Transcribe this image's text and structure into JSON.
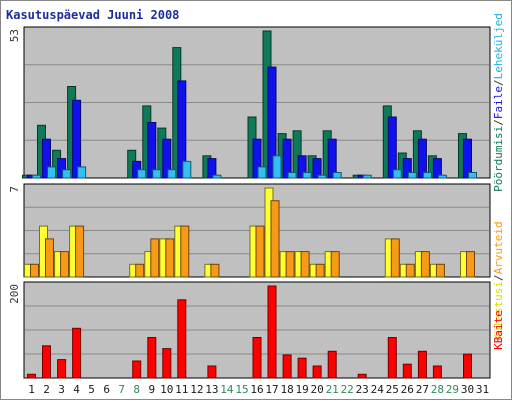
{
  "chart_data": {
    "title": "Kasutuspäevad Juuni 2008",
    "days": [
      "1",
      "2",
      "3",
      "4",
      "5",
      "6",
      "7",
      "8",
      "9",
      "10",
      "11",
      "12",
      "13",
      "14",
      "15",
      "16",
      "17",
      "18",
      "19",
      "20",
      "21",
      "22",
      "23",
      "24",
      "25",
      "26",
      "27",
      "28",
      "29",
      "30",
      "31"
    ],
    "weekend_days": [
      "7",
      "8",
      "14",
      "15",
      "21",
      "22",
      "28",
      "29"
    ],
    "panels": [
      {
        "type": "bar",
        "max_label": "53",
        "ylim": [
          0,
          53
        ],
        "legend": [
          "Pöördumisi",
          "/",
          "Faile",
          "/",
          "Leheküljed"
        ],
        "series": [
          {
            "label_index": 0,
            "color": "#0f7a5a",
            "values": [
              1,
              19,
              10,
              33,
              0,
              0,
              0,
              10,
              26,
              18,
              47,
              0,
              8,
              0,
              0,
              22,
              53,
              16,
              17,
              8,
              17,
              0,
              1,
              0,
              26,
              9,
              17,
              8,
              0,
              16,
              0
            ]
          },
          {
            "label_index": 2,
            "color": "#1111ee",
            "values": [
              1,
              14,
              7,
              28,
              0,
              0,
              0,
              6,
              20,
              14,
              35,
              0,
              7,
              0,
              0,
              14,
              40,
              14,
              8,
              7,
              14,
              0,
              1,
              0,
              22,
              7,
              14,
              7,
              0,
              14,
              0
            ]
          },
          {
            "label_index": 4,
            "color": "#33c0f0",
            "values": [
              1,
              4,
              3,
              4,
              0,
              0,
              0,
              3,
              3,
              3,
              6,
              0,
              1,
              0,
              0,
              4,
              8,
              2,
              2,
              1,
              2,
              0,
              1,
              0,
              3,
              2,
              2,
              1,
              0,
              2,
              0
            ]
          }
        ]
      },
      {
        "type": "bar",
        "max_label": "7",
        "ylim": [
          0,
          7
        ],
        "legend": [
          "Külastusi",
          "/",
          "Arvuteid"
        ],
        "series": [
          {
            "label_index": 0,
            "color": "#ffff33",
            "values": [
              1,
              4,
              2,
              4,
              0,
              0,
              0,
              1,
              2,
              3,
              4,
              0,
              1,
              0,
              0,
              4,
              7,
              2,
              2,
              1,
              2,
              0,
              0,
              0,
              3,
              1,
              2,
              1,
              0,
              2,
              0
            ]
          },
          {
            "label_index": 2,
            "color": "#f79a1a",
            "values": [
              1,
              3,
              2,
              4,
              0,
              0,
              0,
              1,
              3,
              3,
              4,
              0,
              1,
              0,
              0,
              4,
              6,
              2,
              2,
              1,
              2,
              0,
              0,
              0,
              3,
              1,
              2,
              1,
              0,
              2,
              0
            ]
          }
        ]
      },
      {
        "type": "bar",
        "max_label": "200",
        "ylim": [
          0,
          200
        ],
        "legend": [
          "KBaite"
        ],
        "series": [
          {
            "label_index": 0,
            "color": "#ff0000",
            "values": [
              8,
              70,
              40,
              108,
              0,
              0,
              0,
              37,
              88,
              64,
              170,
              0,
              26,
              0,
              0,
              88,
              200,
              50,
              43,
              26,
              58,
              0,
              8,
              0,
              88,
              30,
              58,
              26,
              0,
              52,
              0
            ]
          }
        ]
      }
    ]
  }
}
